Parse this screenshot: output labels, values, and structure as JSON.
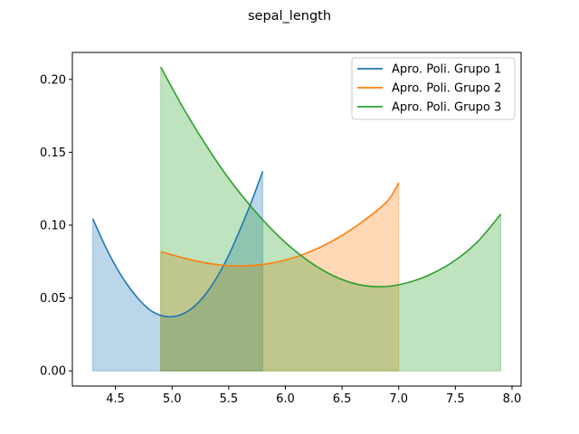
{
  "chart_data": {
    "type": "line",
    "title": "sepal_length",
    "xlabel": "",
    "ylabel": "",
    "xlim": [
      4.12,
      8.08
    ],
    "ylim": [
      -0.0104,
      0.2185
    ],
    "x_ticks": [
      4.5,
      5.0,
      5.5,
      6.0,
      6.5,
      7.0,
      7.5,
      8.0
    ],
    "x_tick_labels": [
      "4.5",
      "5.0",
      "5.5",
      "6.0",
      "6.5",
      "7.0",
      "7.5",
      "8.0"
    ],
    "y_ticks": [
      0.0,
      0.05,
      0.1,
      0.15,
      0.2
    ],
    "y_tick_labels": [
      "0.00",
      "0.05",
      "0.10",
      "0.15",
      "0.20"
    ],
    "grid": false,
    "legend_position": "top-right",
    "series": [
      {
        "name": "Apro. Poli. Grupo 1",
        "color": "#1f77b4",
        "fill_alpha": 0.3,
        "x": [
          4.3,
          4.4,
          4.5,
          4.6,
          4.7,
          4.8,
          4.9,
          5.0,
          5.1,
          5.2,
          5.3,
          5.4,
          5.5,
          5.6,
          5.7,
          5.8
        ],
        "y": [
          0.1045,
          0.0872,
          0.0722,
          0.0597,
          0.0497,
          0.0421,
          0.0381,
          0.0372,
          0.0393,
          0.0446,
          0.0531,
          0.0648,
          0.0794,
          0.097,
          0.116,
          0.137
        ]
      },
      {
        "name": "Apro. Poli. Grupo 2",
        "color": "#ff7f0e",
        "fill_alpha": 0.3,
        "x": [
          4.9,
          5.1,
          5.3,
          5.5,
          5.7,
          5.9,
          6.1,
          6.3,
          6.5,
          6.7,
          6.9,
          7.0
        ],
        "y": [
          0.0818,
          0.0775,
          0.0741,
          0.0722,
          0.0723,
          0.0743,
          0.0784,
          0.0846,
          0.093,
          0.1036,
          0.1165,
          0.129
        ]
      },
      {
        "name": "Apro. Poli. Grupo 3",
        "color": "#2ca02c",
        "fill_alpha": 0.3,
        "x": [
          4.9,
          5.1,
          5.3,
          5.5,
          5.7,
          5.9,
          6.1,
          6.3,
          6.5,
          6.7,
          6.9,
          7.1,
          7.3,
          7.5,
          7.7,
          7.9
        ],
        "y": [
          0.2085,
          0.1802,
          0.1548,
          0.132,
          0.1125,
          0.0955,
          0.0815,
          0.0705,
          0.0627,
          0.0585,
          0.058,
          0.061,
          0.067,
          0.076,
          0.089,
          0.1075
        ]
      }
    ]
  }
}
